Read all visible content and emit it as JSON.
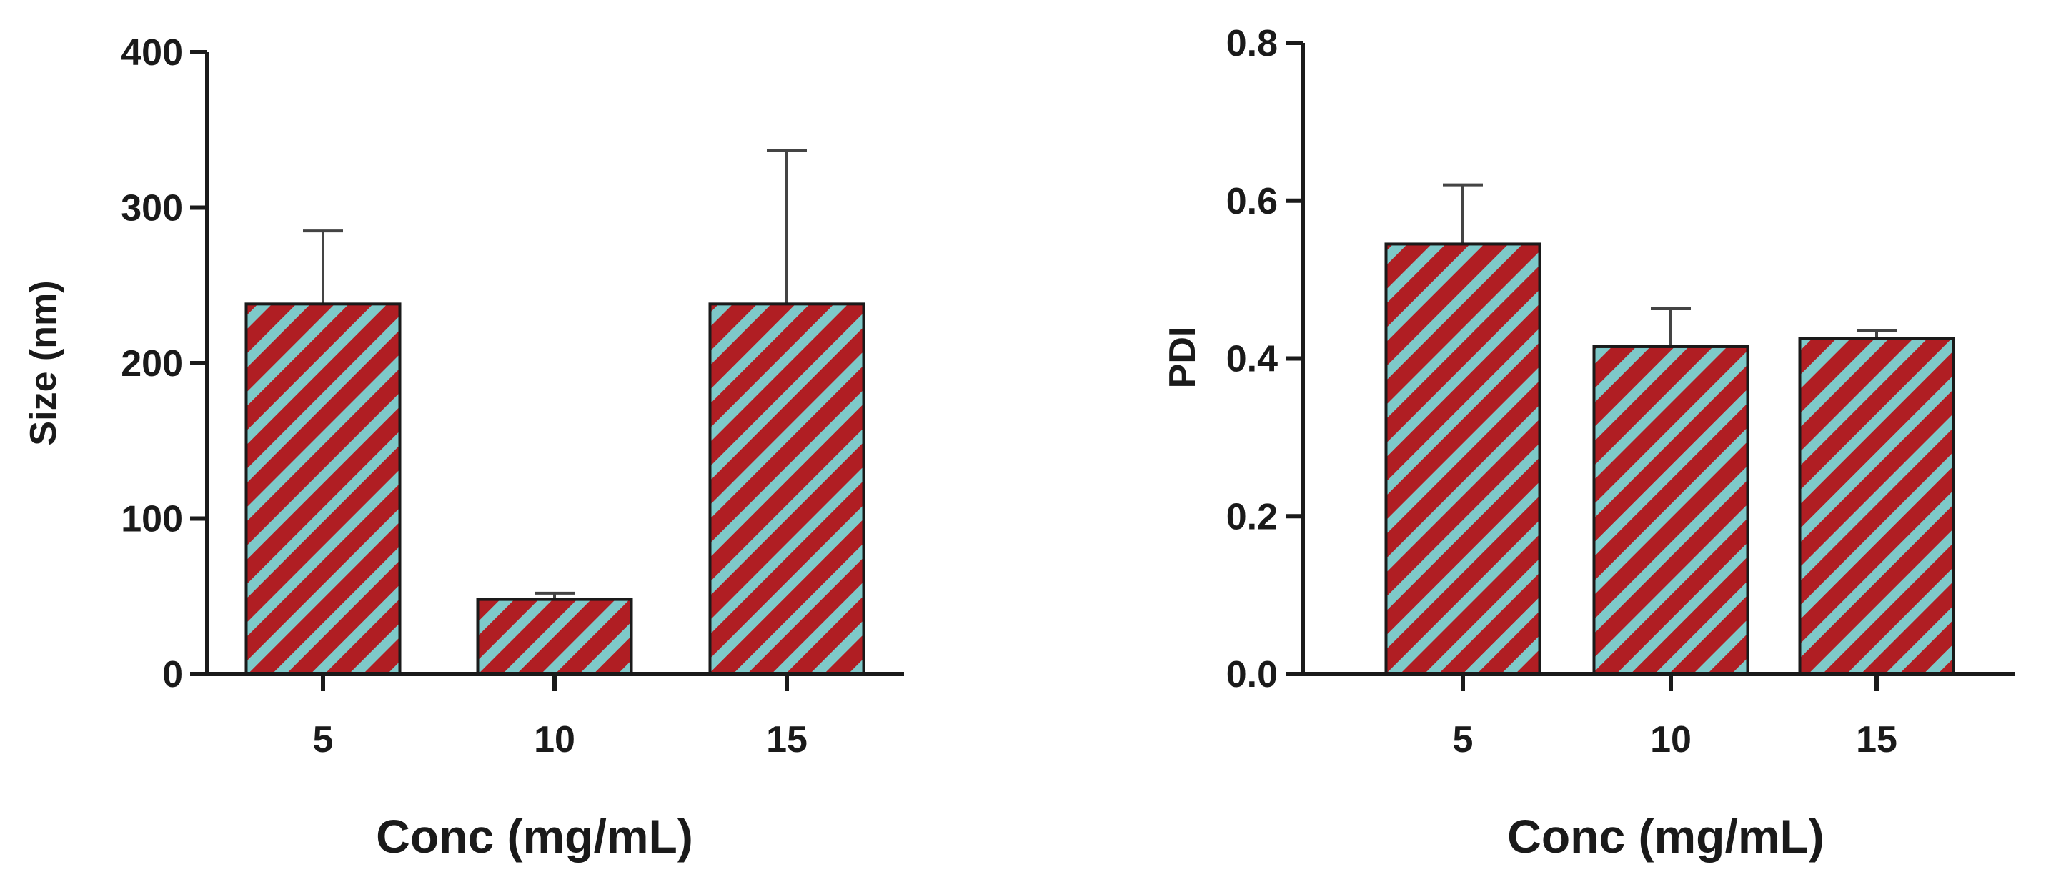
{
  "colors": {
    "bar_stripe_a": "#b01e23",
    "bar_stripe_b": "#7ec9c9",
    "axis": "#1a1a1a",
    "error_bar": "#444444"
  },
  "chart_data": [
    {
      "type": "bar",
      "title": "",
      "xlabel": "Conc (mg/mL)",
      "ylabel": "Size (nm)",
      "categories": [
        "5",
        "10",
        "15"
      ],
      "values": [
        238,
        48,
        238
      ],
      "error_upper": [
        47,
        4,
        99
      ],
      "ylim": [
        0,
        400
      ],
      "yticks": [
        0,
        100,
        200,
        300,
        400
      ],
      "ytick_labels": [
        "0",
        "100",
        "200",
        "300",
        "400"
      ],
      "grid": false
    },
    {
      "type": "bar",
      "title": "",
      "xlabel": "Conc (mg/mL)",
      "ylabel": "PDI",
      "categories": [
        "5",
        "10",
        "15"
      ],
      "values": [
        0.545,
        0.415,
        0.425
      ],
      "error_upper": [
        0.075,
        0.048,
        0.01
      ],
      "ylim": [
        0,
        0.8
      ],
      "yticks": [
        0,
        0.2,
        0.4,
        0.6,
        0.8
      ],
      "ytick_labels": [
        "0.0",
        "0.2",
        "0.4",
        "0.6",
        "0.8"
      ],
      "grid": false
    }
  ]
}
